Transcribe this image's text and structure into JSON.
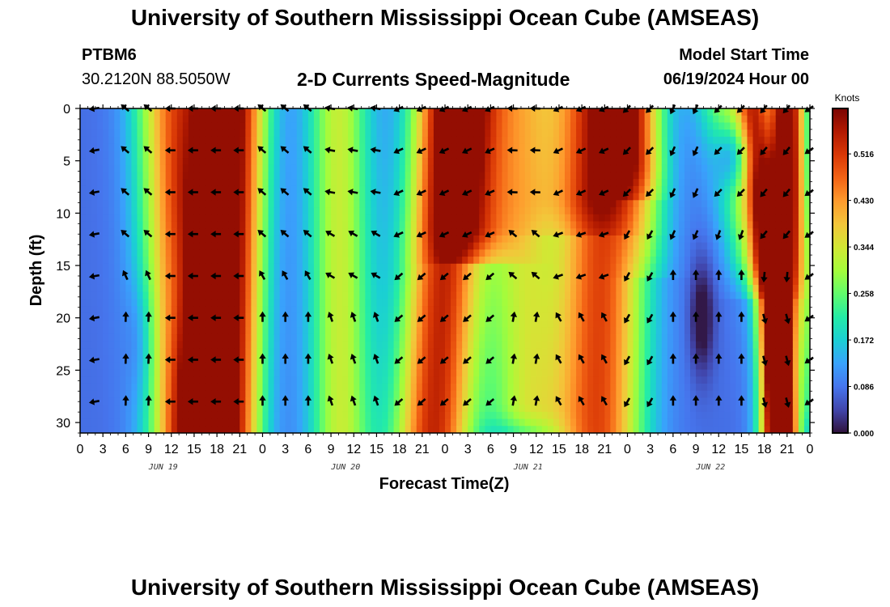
{
  "header": {
    "title": "University of Southern Mississippi Ocean Cube (AMSEAS)",
    "station_id": "PTBM6",
    "coordinates": "30.2120N  88.5050W",
    "panel_title": "2-D Currents Speed-Magnitude",
    "model_start_label": "Model Start Time",
    "model_start_value": "06/19/2024 Hour 00"
  },
  "footer": {
    "title": "University of Southern Mississippi Ocean Cube (AMSEAS)"
  },
  "chart_data": {
    "type": "heatmap",
    "title": "2-D Currents Speed-Magnitude",
    "xlabel": "Forecast Time(Z)",
    "ylabel": "Depth (ft)",
    "x_range_hours": [
      0,
      96
    ],
    "x_tick_step_hours": 3,
    "x_tick_labels": [
      "0",
      "3",
      "6",
      "9",
      "12",
      "15",
      "18",
      "21",
      "0",
      "3",
      "6",
      "9",
      "12",
      "15",
      "18",
      "21",
      "0",
      "3",
      "6",
      "9",
      "12",
      "15",
      "18",
      "21",
      "0",
      "3",
      "6",
      "9",
      "12",
      "15",
      "18",
      "21",
      "0"
    ],
    "date_labels": [
      {
        "label": "JUN 19",
        "hour": 12
      },
      {
        "label": "JUN 20",
        "hour": 36
      },
      {
        "label": "JUN 21",
        "hour": 60
      },
      {
        "label": "JUN 22",
        "hour": 84
      }
    ],
    "y_range_ft": [
      0,
      31
    ],
    "y_ticks": [
      0,
      5,
      10,
      15,
      20,
      25,
      30
    ],
    "colorbar": {
      "units": "Knots",
      "range": [
        0,
        0.6
      ],
      "ticks": [
        "0.000",
        "0.086",
        "0.172",
        "0.258",
        "0.344",
        "0.430",
        "0.516"
      ],
      "tick_values": [
        0,
        0.086,
        0.172,
        0.258,
        0.344,
        0.43,
        0.516
      ]
    },
    "vector_depths_ft": [
      0,
      4,
      8,
      12,
      16,
      20,
      24,
      28
    ],
    "vector_times_hours": [
      2,
      6,
      9,
      12,
      15,
      18,
      21,
      24,
      27,
      30,
      33,
      36,
      39,
      42,
      45,
      48,
      51,
      54,
      57,
      60,
      63,
      66,
      69,
      72,
      75,
      78,
      81,
      84,
      87,
      90,
      93,
      96
    ],
    "speed_colors": [
      "#30123b",
      "#4145ab",
      "#4675ed",
      "#39a2fc",
      "#1bcfd4",
      "#24eca6",
      "#61fc6c",
      "#a4fc3b",
      "#d1e834",
      "#f3c63a",
      "#fe9b2d",
      "#f36315",
      "#d93806",
      "#b11901",
      "#7a0402"
    ]
  }
}
